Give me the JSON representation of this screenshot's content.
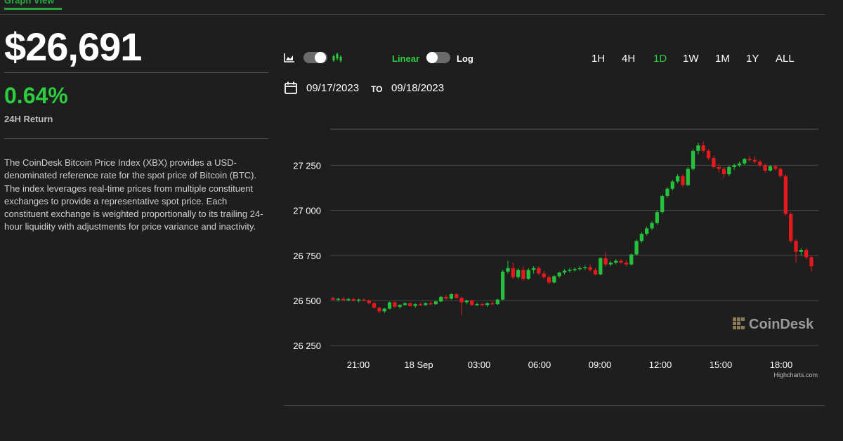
{
  "tabs": {
    "graph_view": "Graph View"
  },
  "price": {
    "value": "$26,691"
  },
  "return": {
    "value": "0.64%",
    "label": "24H Return",
    "color": "#2ecc40"
  },
  "description": "The CoinDesk Bitcoin Price Index (XBX) provides a USD-denominated reference rate for the spot price of Bitcoin (BTC). The index leverages real-time prices from multiple constituent exchanges to provide a representative spot price. Each constituent exchange is weighted proportionally to its trailing 24-hour liquidity with adjustments for price variance and inactivity.",
  "controls": {
    "chart_type_toggle": {
      "left_icon": "area-chart-icon",
      "right_icon": "candlestick-chart-icon",
      "state": "candlestick"
    },
    "scale_toggle": {
      "linear_label": "Linear",
      "log_label": "Log",
      "state": "linear"
    },
    "ranges": [
      "1H",
      "4H",
      "1D",
      "1W",
      "1M",
      "1Y",
      "ALL"
    ],
    "active_range": "1D"
  },
  "date_range": {
    "from": "09/17/2023",
    "to_label": "TO",
    "to": "09/18/2023",
    "icon": "calendar-icon"
  },
  "colors": {
    "up": "#22c33a",
    "down": "#e8191e",
    "accent": "#2ecc40",
    "background": "#1e1e1e"
  },
  "watermark": "CoinDesk",
  "credit": "Highcharts.com",
  "chart_data": {
    "type": "candlestick",
    "title": "",
    "xlabel": "",
    "ylabel": "",
    "ylim": [
      26200,
      27500
    ],
    "y_ticks": [
      "26 250",
      "26 500",
      "26 750",
      "27 000",
      "27 250"
    ],
    "x_ticks": [
      "21:00",
      "18 Sep",
      "03:00",
      "06:00",
      "09:00",
      "12:00",
      "15:00",
      "18:00"
    ],
    "grid": true,
    "candles": [
      {
        "o": 26515,
        "h": 26520,
        "l": 26500,
        "c": 26505
      },
      {
        "o": 26505,
        "h": 26515,
        "l": 26495,
        "c": 26510
      },
      {
        "o": 26510,
        "h": 26518,
        "l": 26500,
        "c": 26502
      },
      {
        "o": 26502,
        "h": 26515,
        "l": 26495,
        "c": 26508
      },
      {
        "o": 26508,
        "h": 26515,
        "l": 26495,
        "c": 26500
      },
      {
        "o": 26500,
        "h": 26510,
        "l": 26490,
        "c": 26505
      },
      {
        "o": 26505,
        "h": 26512,
        "l": 26495,
        "c": 26500
      },
      {
        "o": 26500,
        "h": 26505,
        "l": 26480,
        "c": 26485
      },
      {
        "o": 26485,
        "h": 26490,
        "l": 26455,
        "c": 26460
      },
      {
        "o": 26460,
        "h": 26465,
        "l": 26430,
        "c": 26440
      },
      {
        "o": 26440,
        "h": 26460,
        "l": 26430,
        "c": 26455
      },
      {
        "o": 26455,
        "h": 26495,
        "l": 26450,
        "c": 26490
      },
      {
        "o": 26490,
        "h": 26495,
        "l": 26460,
        "c": 26465
      },
      {
        "o": 26465,
        "h": 26480,
        "l": 26455,
        "c": 26475
      },
      {
        "o": 26475,
        "h": 26490,
        "l": 26470,
        "c": 26485
      },
      {
        "o": 26485,
        "h": 26490,
        "l": 26465,
        "c": 26470
      },
      {
        "o": 26470,
        "h": 26485,
        "l": 26460,
        "c": 26480
      },
      {
        "o": 26480,
        "h": 26490,
        "l": 26470,
        "c": 26475
      },
      {
        "o": 26475,
        "h": 26490,
        "l": 26470,
        "c": 26485
      },
      {
        "o": 26485,
        "h": 26495,
        "l": 26475,
        "c": 26480
      },
      {
        "o": 26480,
        "h": 26500,
        "l": 26475,
        "c": 26495
      },
      {
        "o": 26495,
        "h": 26525,
        "l": 26490,
        "c": 26520
      },
      {
        "o": 26520,
        "h": 26530,
        "l": 26505,
        "c": 26510
      },
      {
        "o": 26510,
        "h": 26540,
        "l": 26505,
        "c": 26535
      },
      {
        "o": 26535,
        "h": 26540,
        "l": 26510,
        "c": 26515
      },
      {
        "o": 26515,
        "h": 26520,
        "l": 26420,
        "c": 26490
      },
      {
        "o": 26490,
        "h": 26505,
        "l": 26480,
        "c": 26500
      },
      {
        "o": 26500,
        "h": 26505,
        "l": 26470,
        "c": 26475
      },
      {
        "o": 26475,
        "h": 26490,
        "l": 26470,
        "c": 26480
      },
      {
        "o": 26480,
        "h": 26490,
        "l": 26470,
        "c": 26475
      },
      {
        "o": 26475,
        "h": 26490,
        "l": 26465,
        "c": 26485
      },
      {
        "o": 26485,
        "h": 26495,
        "l": 26475,
        "c": 26480
      },
      {
        "o": 26480,
        "h": 26510,
        "l": 26475,
        "c": 26505
      },
      {
        "o": 26505,
        "h": 26670,
        "l": 26500,
        "c": 26660
      },
      {
        "o": 26660,
        "h": 26720,
        "l": 26650,
        "c": 26680
      },
      {
        "o": 26680,
        "h": 26710,
        "l": 26620,
        "c": 26630
      },
      {
        "o": 26630,
        "h": 26680,
        "l": 26620,
        "c": 26670
      },
      {
        "o": 26670,
        "h": 26690,
        "l": 26610,
        "c": 26620
      },
      {
        "o": 26620,
        "h": 26680,
        "l": 26615,
        "c": 26670
      },
      {
        "o": 26670,
        "h": 26690,
        "l": 26650,
        "c": 26680
      },
      {
        "o": 26680,
        "h": 26690,
        "l": 26640,
        "c": 26650
      },
      {
        "o": 26650,
        "h": 26665,
        "l": 26620,
        "c": 26630
      },
      {
        "o": 26630,
        "h": 26640,
        "l": 26590,
        "c": 26600
      },
      {
        "o": 26600,
        "h": 26640,
        "l": 26595,
        "c": 26635
      },
      {
        "o": 26635,
        "h": 26660,
        "l": 26625,
        "c": 26655
      },
      {
        "o": 26655,
        "h": 26675,
        "l": 26645,
        "c": 26665
      },
      {
        "o": 26665,
        "h": 26680,
        "l": 26655,
        "c": 26670
      },
      {
        "o": 26670,
        "h": 26685,
        "l": 26660,
        "c": 26675
      },
      {
        "o": 26675,
        "h": 26690,
        "l": 26665,
        "c": 26680
      },
      {
        "o": 26680,
        "h": 26695,
        "l": 26670,
        "c": 26685
      },
      {
        "o": 26685,
        "h": 26700,
        "l": 26660,
        "c": 26670
      },
      {
        "o": 26670,
        "h": 26680,
        "l": 26640,
        "c": 26645
      },
      {
        "o": 26645,
        "h": 26740,
        "l": 26640,
        "c": 26735
      },
      {
        "o": 26735,
        "h": 26770,
        "l": 26690,
        "c": 26700
      },
      {
        "o": 26700,
        "h": 26720,
        "l": 26690,
        "c": 26710
      },
      {
        "o": 26710,
        "h": 26730,
        "l": 26700,
        "c": 26720
      },
      {
        "o": 26720,
        "h": 26730,
        "l": 26705,
        "c": 26710
      },
      {
        "o": 26710,
        "h": 26725,
        "l": 26690,
        "c": 26700
      },
      {
        "o": 26700,
        "h": 26760,
        "l": 26695,
        "c": 26755
      },
      {
        "o": 26755,
        "h": 26840,
        "l": 26750,
        "c": 26830
      },
      {
        "o": 26830,
        "h": 26880,
        "l": 26820,
        "c": 26870
      },
      {
        "o": 26870,
        "h": 26910,
        "l": 26860,
        "c": 26900
      },
      {
        "o": 26900,
        "h": 26940,
        "l": 26890,
        "c": 26930
      },
      {
        "o": 26930,
        "h": 27000,
        "l": 26920,
        "c": 26990
      },
      {
        "o": 26990,
        "h": 27090,
        "l": 26980,
        "c": 27080
      },
      {
        "o": 27080,
        "h": 27130,
        "l": 27070,
        "c": 27120
      },
      {
        "o": 27120,
        "h": 27170,
        "l": 27110,
        "c": 27160
      },
      {
        "o": 27160,
        "h": 27200,
        "l": 27150,
        "c": 27190
      },
      {
        "o": 27190,
        "h": 27200,
        "l": 27130,
        "c": 27140
      },
      {
        "o": 27140,
        "h": 27240,
        "l": 27135,
        "c": 27230
      },
      {
        "o": 27230,
        "h": 27340,
        "l": 27220,
        "c": 27330
      },
      {
        "o": 27330,
        "h": 27375,
        "l": 27310,
        "c": 27360
      },
      {
        "o": 27360,
        "h": 27380,
        "l": 27320,
        "c": 27330
      },
      {
        "o": 27330,
        "h": 27340,
        "l": 27280,
        "c": 27290
      },
      {
        "o": 27290,
        "h": 27300,
        "l": 27230,
        "c": 27240
      },
      {
        "o": 27240,
        "h": 27260,
        "l": 27210,
        "c": 27230
      },
      {
        "o": 27230,
        "h": 27240,
        "l": 27180,
        "c": 27200
      },
      {
        "o": 27200,
        "h": 27250,
        "l": 27190,
        "c": 27240
      },
      {
        "o": 27240,
        "h": 27260,
        "l": 27225,
        "c": 27250
      },
      {
        "o": 27250,
        "h": 27270,
        "l": 27240,
        "c": 27260
      },
      {
        "o": 27260,
        "h": 27290,
        "l": 27250,
        "c": 27285
      },
      {
        "o": 27285,
        "h": 27300,
        "l": 27270,
        "c": 27280
      },
      {
        "o": 27280,
        "h": 27300,
        "l": 27260,
        "c": 27270
      },
      {
        "o": 27270,
        "h": 27280,
        "l": 27240,
        "c": 27250
      },
      {
        "o": 27250,
        "h": 27260,
        "l": 27210,
        "c": 27220
      },
      {
        "o": 27220,
        "h": 27250,
        "l": 27215,
        "c": 27245
      },
      {
        "o": 27245,
        "h": 27250,
        "l": 27220,
        "c": 27230
      },
      {
        "o": 27230,
        "h": 27240,
        "l": 27180,
        "c": 27190
      },
      {
        "o": 27190,
        "h": 27200,
        "l": 26970,
        "c": 26980
      },
      {
        "o": 26980,
        "h": 26990,
        "l": 26820,
        "c": 26830
      },
      {
        "o": 26830,
        "h": 26840,
        "l": 26710,
        "c": 26770
      },
      {
        "o": 26770,
        "h": 26790,
        "l": 26750,
        "c": 26780
      },
      {
        "o": 26780,
        "h": 26790,
        "l": 26730,
        "c": 26740
      },
      {
        "o": 26740,
        "h": 26750,
        "l": 26660,
        "c": 26690
      }
    ]
  }
}
